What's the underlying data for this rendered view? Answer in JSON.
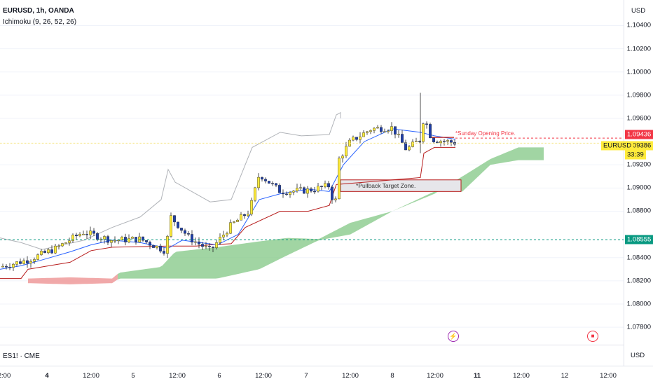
{
  "header": {
    "symbol_line": "EURUSD, 1h, OANDA",
    "indicator_line": "Ichimoku (9, 26, 52, 26)"
  },
  "price_axis": {
    "currency": "USD",
    "ticks": [
      "1.10400",
      "1.10200",
      "1.10000",
      "1.09800",
      "1.09600",
      "1.09200",
      "1.09000",
      "1.08800",
      "1.08400",
      "1.08200",
      "1.08000",
      "1.07800"
    ],
    "tick_values": [
      1.104,
      1.102,
      1.1,
      1.098,
      1.096,
      1.092,
      1.09,
      1.088,
      1.084,
      1.082,
      1.08,
      1.078
    ],
    "red_badge": "1.09436",
    "current_price": "1.09386",
    "countdown": "33:39",
    "green_badge": "1.08555"
  },
  "ticker_tag": "EURUSD",
  "sub_pane": {
    "label": "ES1! · CME",
    "currency": "USD"
  },
  "time_axis": {
    "labels": [
      {
        "text": "2:00",
        "bold": false
      },
      {
        "text": "4",
        "bold": true
      },
      {
        "text": "12:00",
        "bold": false
      },
      {
        "text": "5",
        "bold": false
      },
      {
        "text": "12:00",
        "bold": false
      },
      {
        "text": "6",
        "bold": false
      },
      {
        "text": "12:00",
        "bold": false
      },
      {
        "text": "7",
        "bold": false
      },
      {
        "text": "12:00",
        "bold": false
      },
      {
        "text": "8",
        "bold": false
      },
      {
        "text": "12:00",
        "bold": false
      },
      {
        "text": "11",
        "bold": true
      },
      {
        "text": "12:00",
        "bold": false
      },
      {
        "text": "12",
        "bold": false
      },
      {
        "text": "12:00",
        "bold": false
      }
    ]
  },
  "annotations": {
    "sunday_open": "*Sunday Opening Price.",
    "pullback_zone": "*Pullback Target Zone."
  },
  "colors": {
    "bull_candle": "#ffeb3b",
    "bear_candle": "#1e3ea8",
    "tenkan": "#2962ff",
    "kijun": "#b71c1c",
    "lagging": "#b0b3b8",
    "cloud_bull": "#81c784",
    "cloud_bear": "#ef9a9a",
    "red_level": "#f23645",
    "green_level": "#089981"
  },
  "chart_data": {
    "type": "candlestick",
    "ylim": [
      1.0765,
      1.1062
    ],
    "series": [
      {
        "name": "EURUSD",
        "ohlc_key_points": [
          {
            "x": "Mar 3 22:00",
            "y": 1.0835
          },
          {
            "x": "Mar 4 12:00",
            "y": 1.0858
          },
          {
            "x": "Mar 5 12:00",
            "y": 1.0857
          },
          {
            "x": "Mar 6 03:00",
            "y": 1.0838
          },
          {
            "x": "Mar 6 12:00",
            "y": 1.0912
          },
          {
            "x": "Mar 7 00:00",
            "y": 1.09
          },
          {
            "x": "Mar 7 11:00",
            "y": 1.088
          },
          {
            "x": "Mar 7 12:00",
            "y": 1.0935
          },
          {
            "x": "Mar 8 00:00",
            "y": 1.0954
          },
          {
            "x": "Mar 8 09:00",
            "y": 1.096
          },
          {
            "x": "Mar 8 14:00",
            "y": 1.0939
          }
        ]
      }
    ],
    "levels": [
      {
        "label": "*Sunday Opening Price.",
        "value": 1.09436
      },
      {
        "label": "",
        "value": 1.08555
      }
    ],
    "zones": [
      {
        "label": "*Pullback Target Zone.",
        "from": 1.0897,
        "to": 1.0907
      }
    ]
  }
}
